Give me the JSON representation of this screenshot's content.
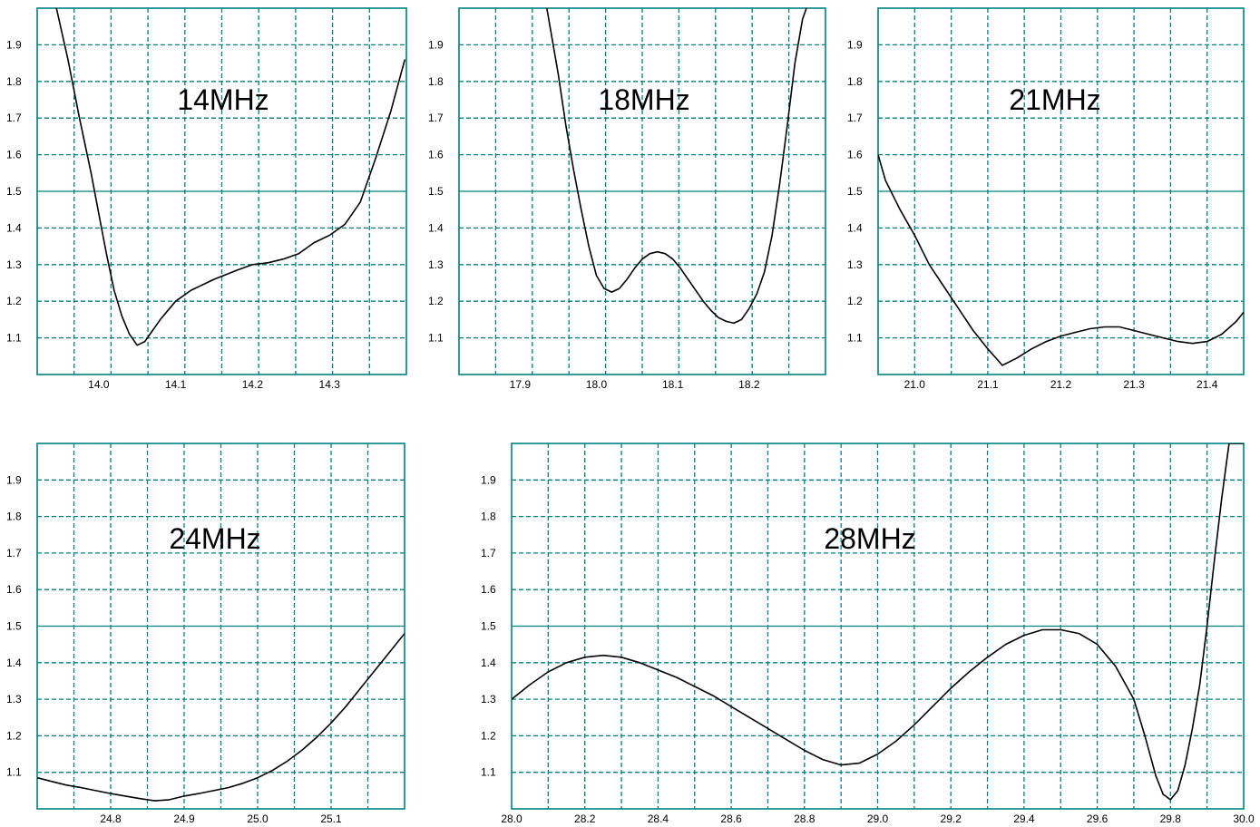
{
  "chart_data": [
    {
      "type": "line",
      "title": "14MHz",
      "xlim": [
        13.92,
        14.4
      ],
      "ylim": [
        1.0,
        2.0
      ],
      "xticks": [
        "14.0",
        "14.1",
        "14.2",
        "14.3"
      ],
      "yticks": [
        "1.1",
        "1.2",
        "1.3",
        "1.4",
        "1.5",
        "1.6",
        "1.7",
        "1.8",
        "1.9"
      ],
      "x": [
        13.945,
        13.96,
        13.975,
        13.99,
        14.0,
        14.01,
        14.02,
        14.03,
        14.04,
        14.05,
        14.06,
        14.07,
        14.08,
        14.1,
        14.12,
        14.15,
        14.18,
        14.2,
        14.22,
        14.24,
        14.26,
        14.28,
        14.3,
        14.32,
        14.34,
        14.36,
        14.38,
        14.398
      ],
      "y": [
        2.0,
        1.86,
        1.7,
        1.55,
        1.44,
        1.33,
        1.23,
        1.16,
        1.11,
        1.08,
        1.09,
        1.12,
        1.15,
        1.2,
        1.23,
        1.26,
        1.285,
        1.3,
        1.305,
        1.315,
        1.33,
        1.36,
        1.38,
        1.41,
        1.47,
        1.59,
        1.72,
        1.86
      ]
    },
    {
      "type": "line",
      "title": "18MHz",
      "xlim": [
        17.82,
        18.3
      ],
      "ylim": [
        1.0,
        2.0
      ],
      "xticks": [
        "17.9",
        "18.0",
        "18.1",
        "18.2"
      ],
      "yticks": [
        "1.1",
        "1.2",
        "1.3",
        "1.4",
        "1.5",
        "1.6",
        "1.7",
        "1.8",
        "1.9"
      ],
      "x": [
        17.935,
        17.95,
        17.96,
        17.97,
        17.98,
        17.99,
        18.0,
        18.01,
        18.02,
        18.03,
        18.04,
        18.05,
        18.06,
        18.07,
        18.08,
        18.09,
        18.1,
        18.11,
        18.12,
        18.13,
        18.14,
        18.15,
        18.16,
        18.17,
        18.18,
        18.19,
        18.2,
        18.21,
        18.22,
        18.23,
        18.24,
        18.25,
        18.26,
        18.27,
        18.275
      ],
      "y": [
        2.0,
        1.82,
        1.68,
        1.56,
        1.45,
        1.35,
        1.27,
        1.235,
        1.225,
        1.235,
        1.26,
        1.29,
        1.315,
        1.33,
        1.335,
        1.33,
        1.315,
        1.29,
        1.26,
        1.23,
        1.2,
        1.175,
        1.155,
        1.145,
        1.14,
        1.15,
        1.18,
        1.22,
        1.28,
        1.38,
        1.52,
        1.68,
        1.85,
        1.97,
        2.0
      ]
    },
    {
      "type": "line",
      "title": "21MHz",
      "xlim": [
        20.95,
        21.45
      ],
      "ylim": [
        1.0,
        2.0
      ],
      "xticks": [
        "21.0",
        "21.1",
        "21.2",
        "21.3",
        "21.4"
      ],
      "yticks": [
        "1.1",
        "1.2",
        "1.3",
        "1.4",
        "1.5",
        "1.6",
        "1.7",
        "1.8",
        "1.9"
      ],
      "x": [
        20.95,
        20.96,
        20.98,
        21.0,
        21.02,
        21.04,
        21.06,
        21.08,
        21.1,
        21.12,
        21.14,
        21.16,
        21.18,
        21.2,
        21.22,
        21.24,
        21.26,
        21.28,
        21.3,
        21.32,
        21.34,
        21.36,
        21.38,
        21.4,
        21.42,
        21.44,
        21.45
      ],
      "y": [
        1.6,
        1.53,
        1.45,
        1.38,
        1.3,
        1.24,
        1.18,
        1.12,
        1.07,
        1.025,
        1.045,
        1.07,
        1.09,
        1.105,
        1.115,
        1.125,
        1.13,
        1.13,
        1.12,
        1.11,
        1.1,
        1.09,
        1.085,
        1.09,
        1.11,
        1.145,
        1.17
      ]
    },
    {
      "type": "line",
      "title": "24MHz",
      "xlim": [
        24.7,
        25.2
      ],
      "ylim": [
        1.0,
        2.0
      ],
      "xticks": [
        "24.8",
        "24.9",
        "25.0",
        "25.1"
      ],
      "yticks": [
        "1.1",
        "1.2",
        "1.3",
        "1.4",
        "1.5",
        "1.6",
        "1.7",
        "1.8",
        "1.9"
      ],
      "x": [
        24.7,
        24.72,
        24.74,
        24.76,
        24.78,
        24.8,
        24.82,
        24.84,
        24.86,
        24.88,
        24.9,
        24.92,
        24.94,
        24.96,
        24.98,
        25.0,
        25.02,
        25.04,
        25.06,
        25.08,
        25.1,
        25.12,
        25.14,
        25.16,
        25.18,
        25.2
      ],
      "y": [
        1.085,
        1.075,
        1.065,
        1.058,
        1.05,
        1.042,
        1.035,
        1.028,
        1.022,
        1.025,
        1.035,
        1.042,
        1.05,
        1.058,
        1.07,
        1.085,
        1.105,
        1.13,
        1.16,
        1.195,
        1.235,
        1.28,
        1.33,
        1.38,
        1.43,
        1.48
      ]
    },
    {
      "type": "line",
      "title": "28MHz",
      "xlim": [
        28.0,
        30.0
      ],
      "ylim": [
        1.0,
        2.0
      ],
      "xticks": [
        "28.0",
        "28.2",
        "28.4",
        "28.6",
        "28.8",
        "29.0",
        "29.2",
        "29.4",
        "29.6",
        "29.8",
        "30.0"
      ],
      "yticks": [
        "1.1",
        "1.2",
        "1.3",
        "1.4",
        "1.5",
        "1.6",
        "1.7",
        "1.8",
        "1.9"
      ],
      "x": [
        28.0,
        28.05,
        28.1,
        28.15,
        28.2,
        28.25,
        28.3,
        28.35,
        28.4,
        28.45,
        28.5,
        28.55,
        28.6,
        28.65,
        28.7,
        28.75,
        28.8,
        28.85,
        28.9,
        28.95,
        29.0,
        29.05,
        29.1,
        29.15,
        29.2,
        29.25,
        29.3,
        29.35,
        29.4,
        29.45,
        29.5,
        29.55,
        29.6,
        29.65,
        29.7,
        29.73,
        29.76,
        29.78,
        29.8,
        29.82,
        29.84,
        29.86,
        29.88,
        29.9,
        29.92,
        29.94,
        29.96,
        29.98,
        30.0
      ],
      "y": [
        1.3,
        1.34,
        1.375,
        1.4,
        1.415,
        1.42,
        1.415,
        1.4,
        1.38,
        1.36,
        1.335,
        1.31,
        1.28,
        1.25,
        1.22,
        1.19,
        1.16,
        1.135,
        1.12,
        1.125,
        1.15,
        1.185,
        1.23,
        1.28,
        1.33,
        1.375,
        1.415,
        1.45,
        1.475,
        1.49,
        1.49,
        1.48,
        1.45,
        1.39,
        1.3,
        1.2,
        1.09,
        1.04,
        1.025,
        1.05,
        1.12,
        1.22,
        1.34,
        1.5,
        1.68,
        1.85,
        2.0,
        2.0,
        2.0
      ]
    }
  ]
}
